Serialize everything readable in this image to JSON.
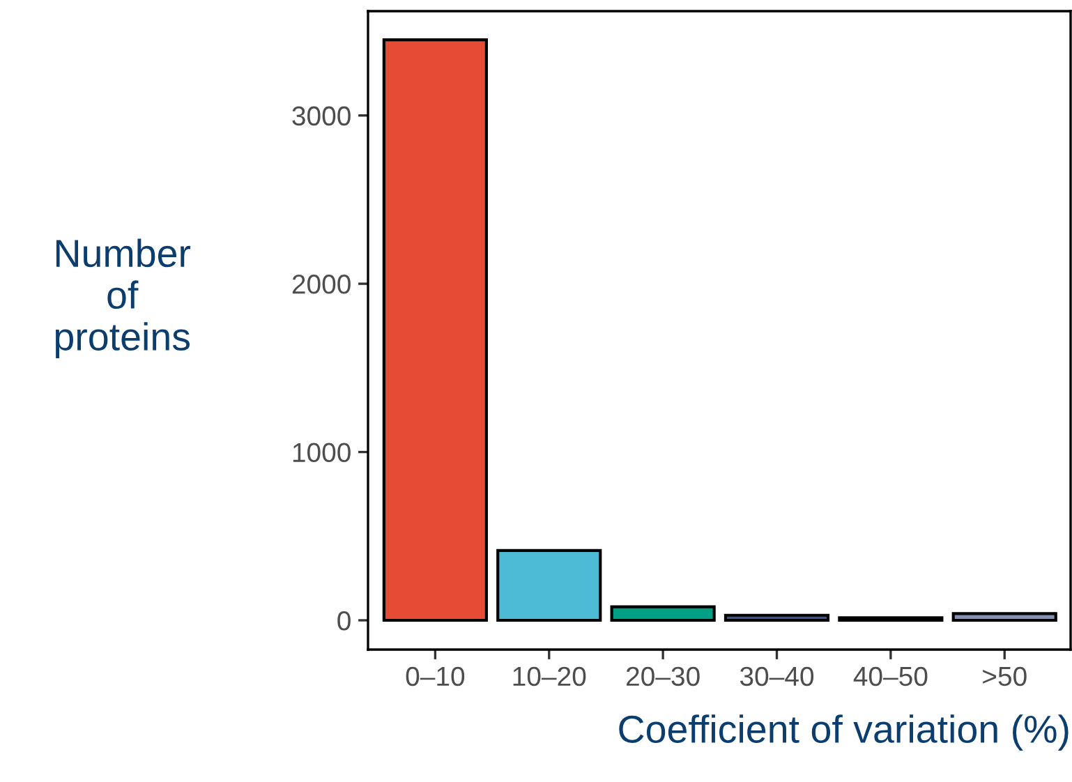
{
  "chart_data": {
    "type": "bar",
    "xlabel": "Coefficient of variation (%)",
    "ylabel": "Number\nof\nproteins",
    "categories": [
      "0–10",
      "10–20",
      "20–30",
      "30–40",
      "40–50",
      ">50"
    ],
    "values": [
      3450,
      415,
      80,
      30,
      15,
      40
    ],
    "colors": [
      "#e64b35",
      "#4dbbd5",
      "#00a087",
      "#3c5488",
      "#000000",
      "#8491b4"
    ],
    "ylim": [
      -174,
      3620
    ],
    "yticks": [
      0,
      1000,
      2000,
      3000
    ],
    "grid": false
  }
}
